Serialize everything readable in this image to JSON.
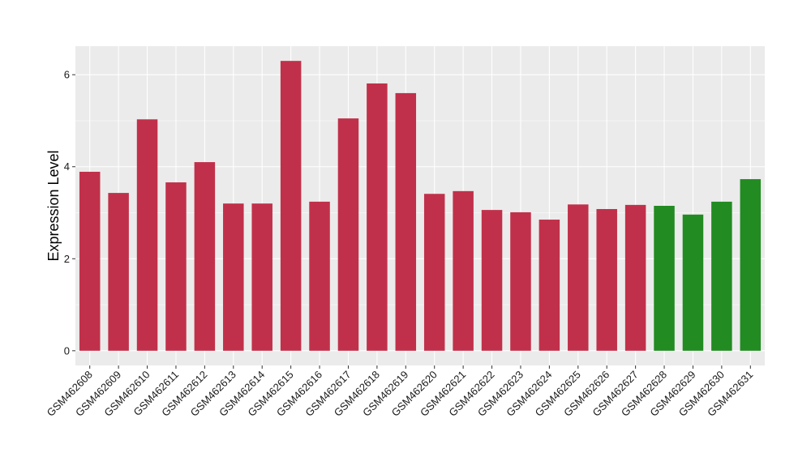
{
  "chart_data": {
    "type": "bar",
    "title": "",
    "xlabel": "",
    "ylabel": "Expression Level",
    "ylim": [
      -0.32,
      6.62
    ],
    "yticks": [
      0,
      2,
      4,
      6
    ],
    "grid": true,
    "categories": [
      "GSM462608",
      "GSM462609",
      "GSM462610",
      "GSM462611",
      "GSM462612",
      "GSM462613",
      "GSM462614",
      "GSM462615",
      "GSM462616",
      "GSM462617",
      "GSM462618",
      "GSM462619",
      "GSM462620",
      "GSM462621",
      "GSM462622",
      "GSM462623",
      "GSM462624",
      "GSM462625",
      "GSM462626",
      "GSM462627",
      "GSM462628",
      "GSM462629",
      "GSM462630",
      "GSM462631"
    ],
    "values": [
      3.89,
      3.43,
      5.03,
      3.66,
      4.1,
      3.2,
      3.2,
      6.3,
      3.24,
      5.05,
      5.81,
      5.6,
      3.41,
      3.47,
      3.06,
      3.01,
      2.85,
      3.18,
      3.08,
      3.17,
      3.15,
      2.96,
      3.24,
      3.73
    ],
    "groups": [
      "red",
      "red",
      "red",
      "red",
      "red",
      "red",
      "red",
      "red",
      "red",
      "red",
      "red",
      "red",
      "red",
      "red",
      "red",
      "red",
      "red",
      "red",
      "red",
      "red",
      "green",
      "green",
      "green",
      "green"
    ],
    "colors": {
      "red": "#C1304A",
      "green": "#228B22",
      "panel": "#EBEBEB",
      "grid": "#FFFFFF"
    }
  }
}
